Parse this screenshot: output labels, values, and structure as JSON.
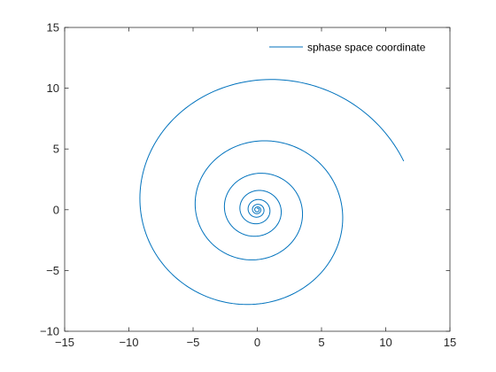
{
  "chart_data": {
    "type": "line",
    "title": "",
    "xlabel": "",
    "ylabel": "",
    "xlim": [
      -15,
      15
    ],
    "ylim": [
      -10,
      15
    ],
    "xticks": [
      -15,
      -10,
      -5,
      0,
      5,
      10,
      15
    ],
    "yticks": [
      -10,
      -5,
      0,
      5,
      10,
      15
    ],
    "grid": false,
    "legend": {
      "position": "top-right",
      "entries": [
        "sphase space coordinate"
      ]
    },
    "series": [
      {
        "name": "sphase space coordinate",
        "color": "#0072bd",
        "shape": "inward spiral, counter-clockwise, centered at (0, 0)",
        "start": [
          11.4,
          4.0
        ],
        "end": [
          0.0,
          0.0
        ],
        "x_range": [
          -10.3,
          11.4
        ],
        "y_range": [
          -9.9,
          11.3
        ],
        "turns": 7.25
      }
    ]
  }
}
